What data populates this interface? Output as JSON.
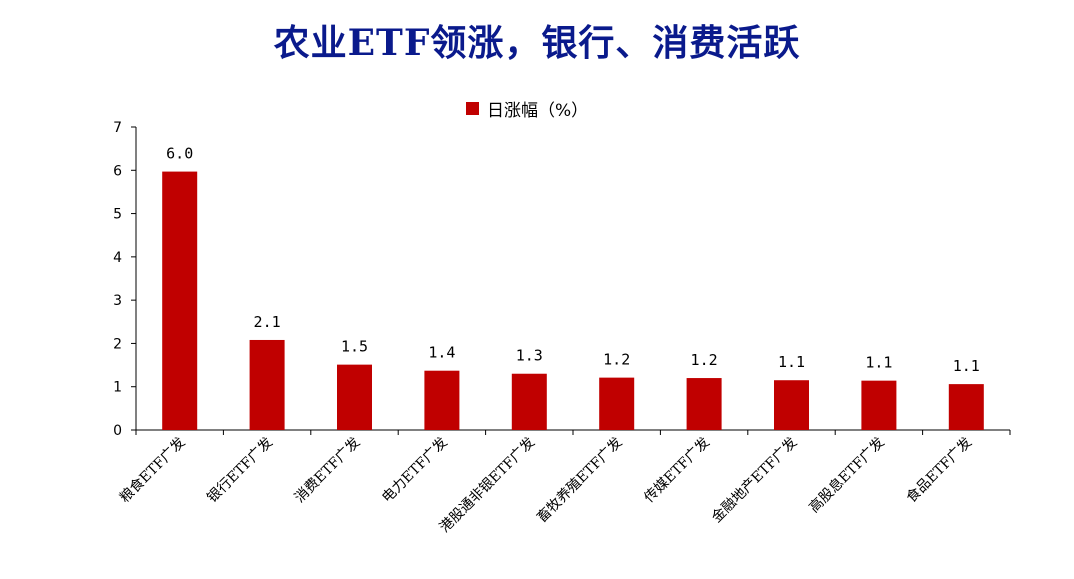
{
  "chart_data": {
    "type": "bar",
    "title": "农业ETF领涨，银行、消费活跃",
    "xlabel": "",
    "ylabel": "",
    "legend": {
      "position": "top-center",
      "entries": [
        "日涨幅（%）"
      ]
    },
    "grid": false,
    "ylim": [
      0,
      7
    ],
    "yticks": [
      0,
      1,
      2,
      3,
      4,
      5,
      6,
      7
    ],
    "categories": [
      "粮食ETF广发",
      "银行ETF广发",
      "消费ETF广发",
      "电力ETF广发",
      "港股通非银ETF广发",
      "畜牧养殖ETF广发",
      "传媒ETF广发",
      "金融地产ETF广发",
      "高股息ETF广发",
      "食品ETF广发"
    ],
    "series": [
      {
        "name": "日涨幅（%）",
        "color": "#c00000",
        "values": [
          5.97,
          2.08,
          1.51,
          1.37,
          1.3,
          1.21,
          1.2,
          1.15,
          1.14,
          1.06
        ],
        "data_labels": [
          "6.0",
          "2.1",
          "1.5",
          "1.4",
          "1.3",
          "1.2",
          "1.2",
          "1.1",
          "1.1",
          "1.1"
        ]
      }
    ]
  }
}
